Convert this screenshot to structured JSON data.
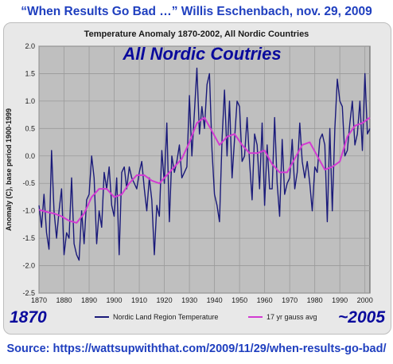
{
  "header": {
    "caption": "“When Results Go Bad …” Willis Eschenbach, nov. 29, 2009"
  },
  "footer": {
    "source": "Source: https://wattsupwiththat.com/2009/11/29/when-results-go-bad/",
    "start_label": "1870",
    "end_label": "~2005"
  },
  "colors": {
    "accent_text": "#1f3fbf",
    "series_raw": "#1a1a7a",
    "series_smooth": "#d23bd2",
    "plot_bg": "#bfbfbf"
  },
  "chart_data": {
    "type": "line",
    "title": "Temperature Anomaly 1870-2002, All Nordic Countries",
    "overlay_title": "All Nordic Coutries",
    "xlabel": "",
    "ylabel": "Anomaly (C), base period 1900-1999",
    "xlim": [
      1870,
      2002
    ],
    "ylim": [
      -2.5,
      2.0
    ],
    "x_ticks": [
      "1870",
      "1880",
      "1890",
      "1900",
      "1910",
      "1920",
      "1930",
      "1940",
      "1950",
      "1960",
      "1970",
      "1980",
      "1990",
      "2000"
    ],
    "y_ticks": [
      "2.0",
      "1.5",
      "1.0",
      "0.5",
      "0.0",
      "-0.5",
      "-1.0",
      "-1.5",
      "-2.0",
      "-2.5"
    ],
    "grid": true,
    "legend_position": "bottom",
    "series": [
      {
        "name": "Nordic Land Region Temperature",
        "x": [
          1870,
          1871,
          1872,
          1873,
          1874,
          1875,
          1876,
          1877,
          1878,
          1879,
          1880,
          1881,
          1882,
          1883,
          1884,
          1885,
          1886,
          1887,
          1888,
          1889,
          1890,
          1891,
          1892,
          1893,
          1894,
          1895,
          1896,
          1897,
          1898,
          1899,
          1900,
          1901,
          1902,
          1903,
          1904,
          1905,
          1906,
          1907,
          1908,
          1909,
          1910,
          1911,
          1912,
          1913,
          1914,
          1915,
          1916,
          1917,
          1918,
          1919,
          1920,
          1921,
          1922,
          1923,
          1924,
          1925,
          1926,
          1927,
          1928,
          1929,
          1930,
          1931,
          1932,
          1933,
          1934,
          1935,
          1936,
          1937,
          1938,
          1939,
          1940,
          1941,
          1942,
          1943,
          1944,
          1945,
          1946,
          1947,
          1948,
          1949,
          1950,
          1951,
          1952,
          1953,
          1954,
          1955,
          1956,
          1957,
          1958,
          1959,
          1960,
          1961,
          1962,
          1963,
          1964,
          1965,
          1966,
          1967,
          1968,
          1969,
          1970,
          1971,
          1972,
          1973,
          1974,
          1975,
          1976,
          1977,
          1978,
          1979,
          1980,
          1981,
          1982,
          1983,
          1984,
          1985,
          1986,
          1987,
          1988,
          1989,
          1990,
          1991,
          1992,
          1993,
          1994,
          1995,
          1996,
          1997,
          1998,
          1999,
          2000,
          2001,
          2002
        ],
        "y": [
          -0.9,
          -1.3,
          -0.7,
          -1.4,
          -1.7,
          0.1,
          -1.0,
          -1.5,
          -1.0,
          -0.6,
          -1.8,
          -1.4,
          -1.5,
          -0.4,
          -1.6,
          -1.8,
          -1.9,
          -1.0,
          -1.6,
          -0.8,
          -0.7,
          0.0,
          -0.4,
          -1.6,
          -1.0,
          -1.3,
          -0.3,
          -0.6,
          -0.2,
          -0.9,
          -1.1,
          -0.4,
          -1.8,
          -0.3,
          -0.2,
          -0.6,
          -0.2,
          -0.4,
          -0.5,
          -0.6,
          -0.3,
          -0.1,
          -0.6,
          -1.0,
          -0.4,
          -0.8,
          -1.8,
          -0.9,
          -1.1,
          0.1,
          -0.5,
          0.6,
          -1.2,
          0.0,
          -0.3,
          -0.1,
          0.2,
          -0.4,
          -0.3,
          -0.2,
          1.1,
          0.0,
          0.8,
          1.6,
          0.4,
          0.9,
          0.5,
          1.3,
          1.5,
          0.1,
          -0.7,
          -0.9,
          -1.2,
          0.3,
          1.2,
          0.0,
          1.0,
          -0.4,
          0.3,
          1.0,
          0.9,
          -0.1,
          0.0,
          0.7,
          -0.1,
          -0.8,
          0.4,
          0.2,
          -0.6,
          0.6,
          -0.9,
          0.2,
          -0.6,
          -0.6,
          0.7,
          -0.5,
          -1.1,
          0.3,
          -0.7,
          -0.5,
          -0.4,
          0.3,
          -0.6,
          -0.3,
          0.6,
          -0.1,
          -0.4,
          -0.1,
          -0.5,
          -1.0,
          -0.2,
          -0.3,
          0.3,
          0.4,
          0.2,
          -1.2,
          0.5,
          -1.0,
          0.5,
          1.4,
          1.0,
          0.9,
          0.0,
          0.1,
          0.6,
          1.0,
          0.2,
          0.4,
          1.0,
          0.1,
          1.5,
          0.4,
          0.5
        ]
      },
      {
        "name": "17 yr gauss avg",
        "x": [
          1870,
          1873,
          1876,
          1879,
          1882,
          1885,
          1888,
          1891,
          1894,
          1897,
          1900,
          1903,
          1906,
          1909,
          1912,
          1915,
          1918,
          1921,
          1924,
          1927,
          1930,
          1933,
          1936,
          1939,
          1942,
          1945,
          1948,
          1951,
          1954,
          1957,
          1960,
          1963,
          1966,
          1969,
          1972,
          1975,
          1978,
          1981,
          1984,
          1987,
          1990,
          1993,
          1996,
          1999,
          2002
        ],
        "y": [
          -0.98,
          -1.02,
          -1.05,
          -1.1,
          -1.18,
          -1.22,
          -1.05,
          -0.75,
          -0.6,
          -0.6,
          -0.75,
          -0.7,
          -0.5,
          -0.35,
          -0.35,
          -0.45,
          -0.5,
          -0.35,
          -0.2,
          -0.05,
          0.25,
          0.6,
          0.7,
          0.45,
          0.2,
          0.35,
          0.4,
          0.2,
          0.05,
          0.05,
          0.1,
          -0.15,
          -0.3,
          -0.3,
          -0.05,
          0.2,
          0.25,
          0.0,
          -0.25,
          -0.2,
          -0.1,
          0.35,
          0.55,
          0.6,
          0.7
        ]
      }
    ]
  }
}
